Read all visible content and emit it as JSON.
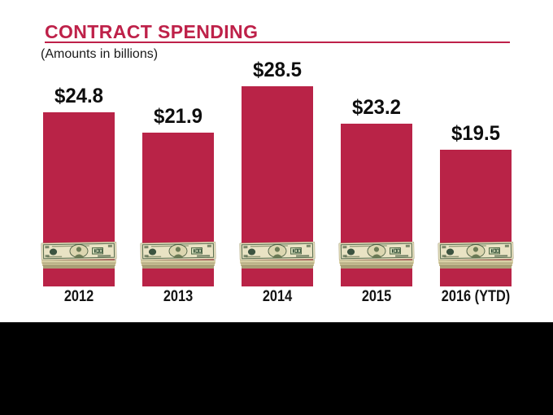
{
  "colors": {
    "accent": "#BE2149",
    "bar": "#B92347",
    "band": "#000000"
  },
  "chart_data": {
    "type": "bar",
    "title": "CONTRACT SPENDING",
    "subtitle": "(Amounts in billions)",
    "categories": [
      "2012",
      "2013",
      "2014",
      "2015",
      "2016 (YTD)"
    ],
    "values": [
      24.8,
      21.9,
      28.5,
      23.2,
      19.5
    ],
    "value_labels": [
      "$24.8",
      "$21.9",
      "$28.5",
      "$23.2",
      "$19.5"
    ],
    "bar_color": "#B92347",
    "ylim": [
      0,
      30
    ],
    "grid": false,
    "legend": false,
    "bar_icon": "money-stack"
  }
}
